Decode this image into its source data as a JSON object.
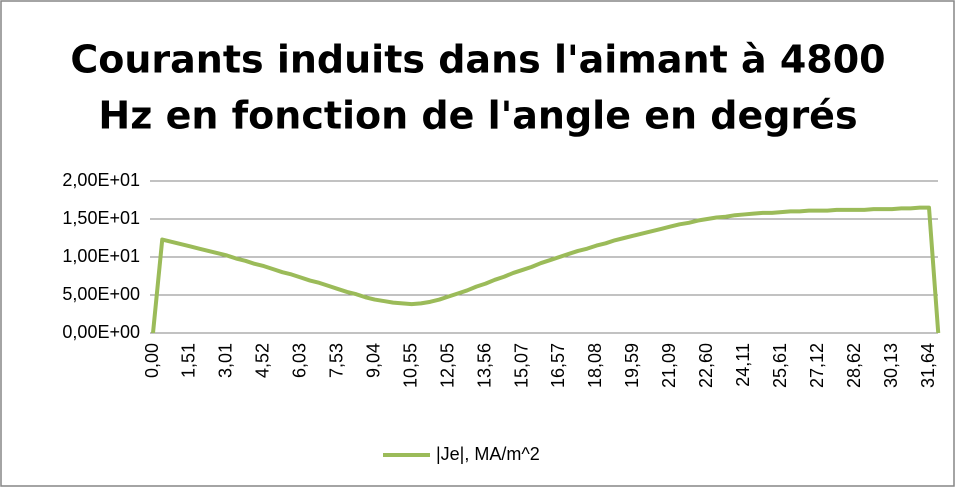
{
  "chart_data": {
    "type": "line",
    "title": [
      "Courants induits dans l'aimant à 4800",
      "Hz en fonction de l'angle en degrés"
    ],
    "categories": [
      "0,00",
      null,
      null,
      null,
      "1,51",
      null,
      null,
      null,
      "3,01",
      null,
      null,
      null,
      "4,52",
      null,
      null,
      null,
      "6,03",
      null,
      null,
      null,
      "7,53",
      null,
      null,
      null,
      "9,04",
      null,
      null,
      null,
      "10,55",
      null,
      null,
      null,
      "12,05",
      null,
      null,
      null,
      "13,56",
      null,
      null,
      null,
      "15,07",
      null,
      null,
      null,
      "16,57",
      null,
      null,
      null,
      "18,08",
      null,
      null,
      null,
      "19,59",
      null,
      null,
      null,
      "21,09",
      null,
      null,
      null,
      "22,60",
      null,
      null,
      null,
      "24,11",
      null,
      null,
      null,
      "25,61",
      null,
      null,
      null,
      "27,12",
      null,
      null,
      null,
      "28,62",
      null,
      null,
      null,
      "30,13",
      null,
      null,
      null,
      "31,64",
      null
    ],
    "series": [
      {
        "name": "|Je|, MA/m^2",
        "color": "#9bbb59",
        "values": [
          0,
          12.3,
          12.0,
          11.7,
          11.4,
          11.1,
          10.8,
          10.5,
          10.2,
          9.8,
          9.5,
          9.1,
          8.8,
          8.4,
          8.0,
          7.7,
          7.3,
          6.9,
          6.6,
          6.2,
          5.8,
          5.4,
          5.1,
          4.7,
          4.4,
          4.2,
          4.0,
          3.9,
          3.8,
          3.9,
          4.1,
          4.4,
          4.8,
          5.2,
          5.6,
          6.1,
          6.5,
          7.0,
          7.4,
          7.9,
          8.3,
          8.7,
          9.2,
          9.6,
          10.0,
          10.4,
          10.8,
          11.1,
          11.5,
          11.8,
          12.2,
          12.5,
          12.8,
          13.1,
          13.4,
          13.7,
          14.0,
          14.3,
          14.5,
          14.8,
          15.0,
          15.2,
          15.3,
          15.5,
          15.6,
          15.7,
          15.8,
          15.8,
          15.9,
          16.0,
          16.0,
          16.1,
          16.1,
          16.1,
          16.2,
          16.2,
          16.2,
          16.2,
          16.3,
          16.3,
          16.3,
          16.4,
          16.4,
          16.5,
          16.5,
          0
        ]
      }
    ],
    "ylim": [
      0,
      20
    ],
    "yticks": [
      {
        "value": 0,
        "label": "0,00E+00"
      },
      {
        "value": 5,
        "label": "5,00E+00"
      },
      {
        "value": 10,
        "label": "1,00E+01"
      },
      {
        "value": 15,
        "label": "1,50E+01"
      },
      {
        "value": 20,
        "label": "2,00E+01"
      }
    ],
    "grid": true,
    "legend": "bottom"
  }
}
